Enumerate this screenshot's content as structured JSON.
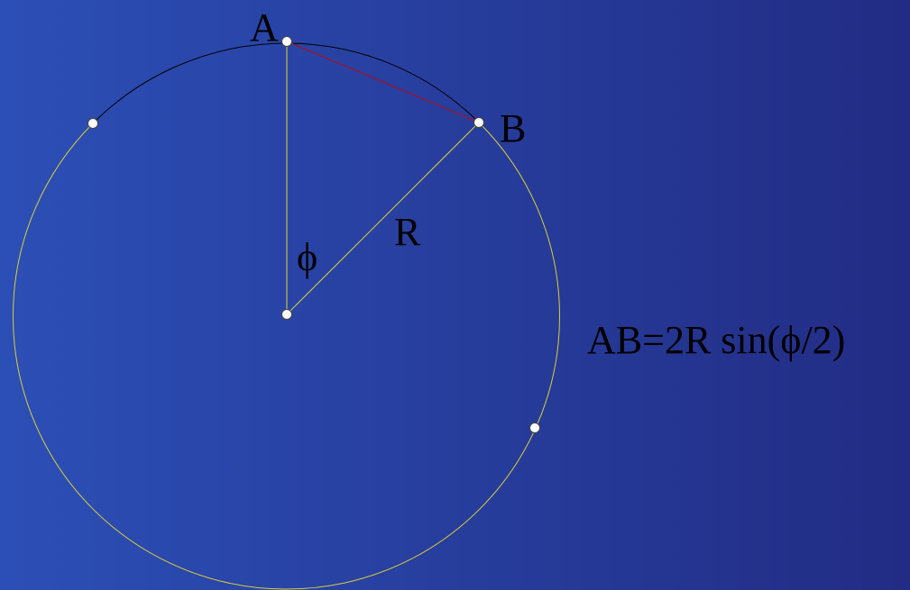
{
  "labels": {
    "a": "A",
    "b": "B",
    "r": "R",
    "phi": "ϕ"
  },
  "formula": "AB=2R sin(ϕ/2)"
}
